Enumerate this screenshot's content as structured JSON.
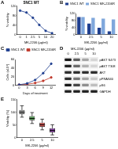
{
  "chart_data": [
    {
      "panel": "A",
      "type": "line",
      "title": "SNC1 WT",
      "x_label": "MK-2206 (µg/ml)",
      "y_label": "% viability",
      "categories": [
        "0",
        "1",
        "2.5",
        "5",
        "10",
        "20"
      ],
      "values": [
        100,
        92,
        70,
        40,
        15,
        5
      ],
      "color": "#1f3f8f",
      "marker": "circle",
      "ylim": [
        0,
        120
      ],
      "yticks": [
        0,
        40,
        80,
        120
      ],
      "grid": false
    },
    {
      "panel": "B",
      "type": "bar",
      "x_label": "MK-2206 (µg/ml)",
      "y_label": "% viability",
      "categories": [
        "0",
        "2.5",
        "5",
        "10"
      ],
      "series": [
        {
          "name": "SNC1 WT",
          "color": "#1f3f8f",
          "values": [
            100,
            62,
            38,
            18
          ]
        },
        {
          "name": "SNC1 MK-2206R",
          "color": "#7fa7dc",
          "values": [
            100,
            95,
            90,
            86
          ]
        }
      ],
      "ylim": [
        0,
        120
      ],
      "yticks": [
        0,
        40,
        80,
        120
      ],
      "legend": "top",
      "grid": false
    },
    {
      "panel": "C",
      "type": "line",
      "x_label": "Days of treatment",
      "y_label": "Cells (x10⁴)",
      "categories": [
        "0",
        "3",
        "6",
        "9",
        "12"
      ],
      "series": [
        {
          "name": "SNC1 WT",
          "color": "#1f3f8f",
          "values": [
            1,
            4,
            12,
            28,
            50
          ]
        },
        {
          "name": "SNC1 MK-2206R",
          "color": "#c0392b",
          "values": [
            1,
            2,
            5,
            10,
            18
          ]
        }
      ],
      "marker": "circle",
      "ylim": [
        0,
        60
      ],
      "yticks": [
        0,
        20,
        40,
        60
      ],
      "legend": "top",
      "grid": false
    },
    {
      "panel": "E",
      "type": "box",
      "x_label": "MK-2206 (µg/ml)",
      "y_label": "Viability (%)",
      "categories": [
        "0",
        "2.5",
        "5",
        "10"
      ],
      "min": [
        80,
        55,
        30,
        10
      ],
      "q1": [
        92,
        68,
        42,
        20
      ],
      "median": [
        100,
        75,
        50,
        28
      ],
      "q3": [
        108,
        84,
        58,
        36
      ],
      "max": [
        125,
        98,
        72,
        50
      ],
      "colors": [
        "#9e9e9e",
        "#5aa05a",
        "#d9534f",
        "#8e44ad"
      ],
      "ylim": [
        0,
        150
      ],
      "yticks": [
        0,
        50,
        100,
        150
      ],
      "grid": false
    }
  ],
  "blot": {
    "panel": "D",
    "title": "MK-2206 (µg/ml)",
    "lanes": [
      "0",
      "2.5",
      "5",
      "10"
    ],
    "rows": [
      {
        "label": "pAKT S473",
        "bands": [
          0.9,
          0.6,
          0.3,
          0.1
        ]
      },
      {
        "label": "pAKT T308",
        "bands": [
          0.85,
          0.55,
          0.25,
          0.1
        ]
      },
      {
        "label": "AKT",
        "bands": [
          0.8,
          0.8,
          0.8,
          0.8
        ]
      },
      {
        "label": "pPRAS40",
        "bands": [
          0.8,
          0.5,
          0.3,
          0.15
        ]
      },
      {
        "label": "pS6",
        "bands": [
          0.9,
          0.7,
          0.4,
          0.2
        ]
      },
      {
        "label": "GAPDH",
        "bands": [
          0.85,
          0.85,
          0.85,
          0.85
        ]
      }
    ]
  }
}
